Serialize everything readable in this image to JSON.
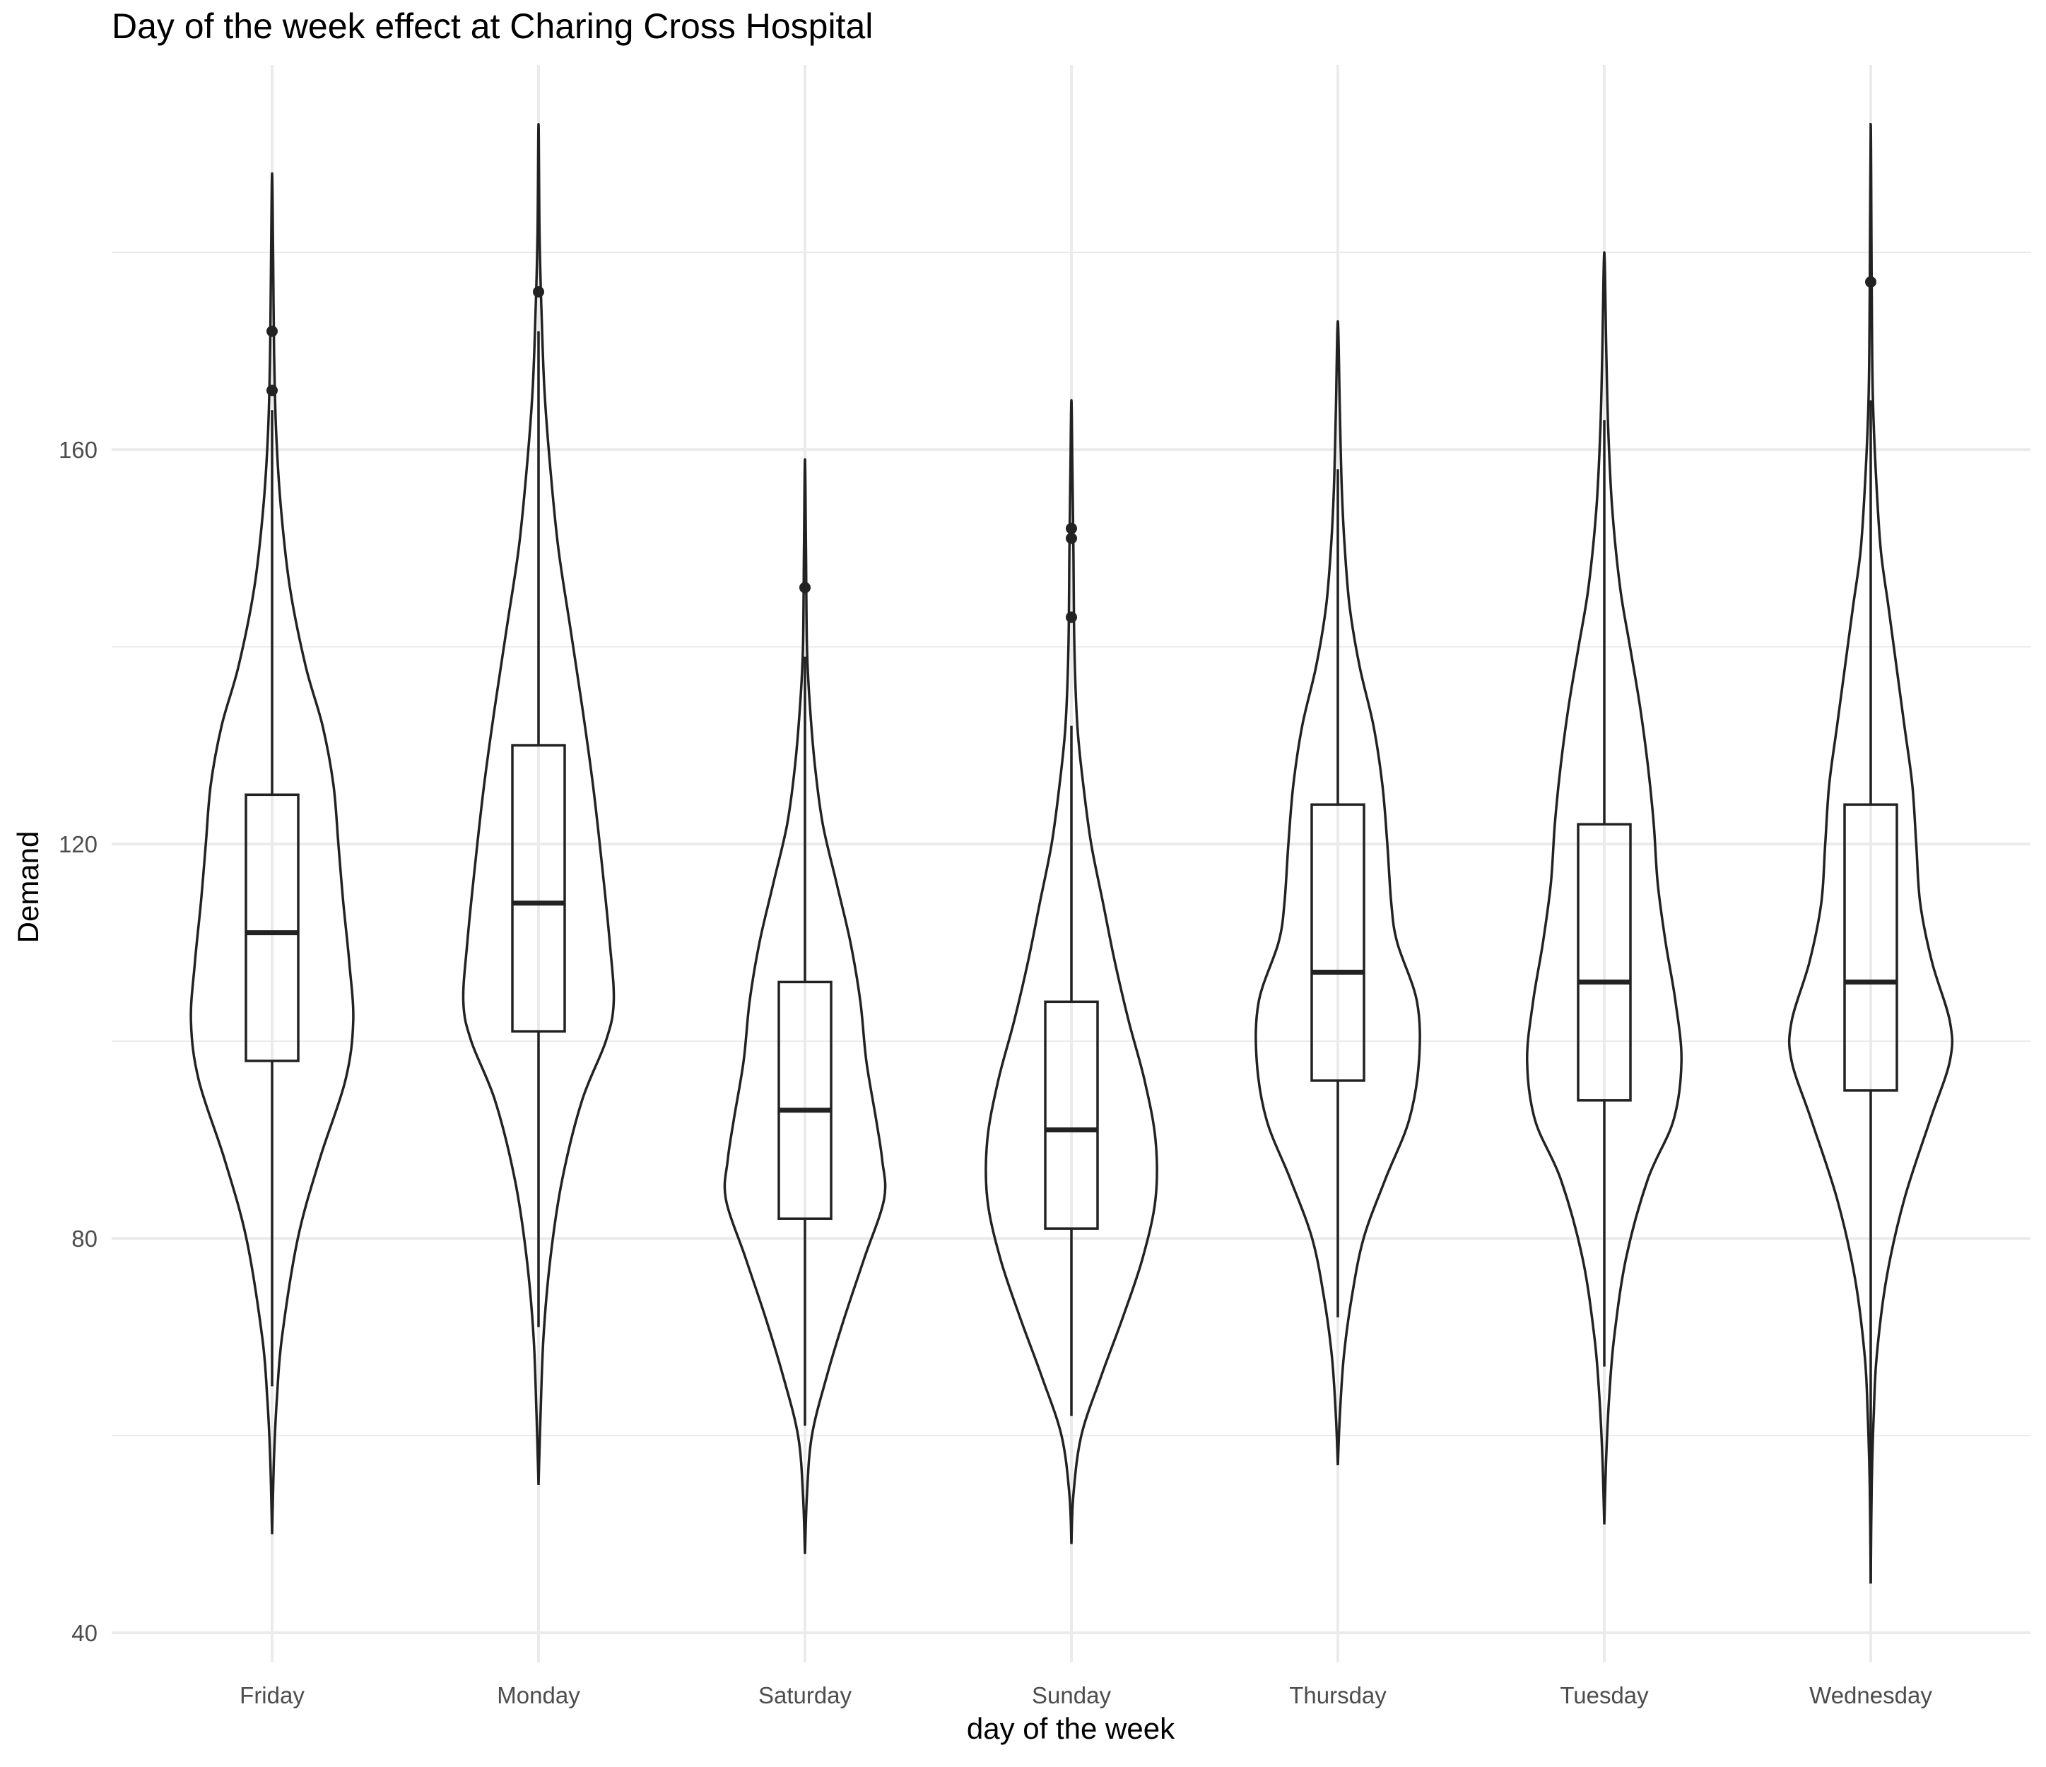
{
  "chart_data": {
    "type": "violin",
    "title": "Day of the week effect at Charing Cross Hospital",
    "xlabel": "day of the week",
    "ylabel": "Demand",
    "ylim": [
      37,
      199
    ],
    "yticks": [
      40,
      80,
      120,
      160
    ],
    "minor_yticks": [
      60,
      100,
      140,
      180
    ],
    "grid": true,
    "legend": "none",
    "colors": {
      "stroke": "#222222",
      "grid": "#ebebeb",
      "axis_text": "#4d4d4d"
    },
    "categories": [
      "Friday",
      "Monday",
      "Saturday",
      "Sunday",
      "Thursday",
      "Tuesday",
      "Wednesday"
    ],
    "series": [
      {
        "category": "Friday",
        "box": {
          "lower_whisker": 65,
          "q1": 98,
          "median": 111,
          "q3": 125,
          "upper_whisker": 164
        },
        "outliers": [
          166,
          172
        ],
        "violin_range": [
          50,
          188
        ],
        "violin_width_profile": [
          [
            50,
            0.0
          ],
          [
            58,
            0.02
          ],
          [
            64,
            0.05
          ],
          [
            70,
            0.1
          ],
          [
            80,
            0.26
          ],
          [
            88,
            0.48
          ],
          [
            96,
            0.74
          ],
          [
            102,
            0.82
          ],
          [
            108,
            0.78
          ],
          [
            114,
            0.72
          ],
          [
            120,
            0.67
          ],
          [
            126,
            0.62
          ],
          [
            132,
            0.51
          ],
          [
            138,
            0.34
          ],
          [
            146,
            0.18
          ],
          [
            154,
            0.09
          ],
          [
            162,
            0.04
          ],
          [
            170,
            0.02
          ],
          [
            180,
            0.01
          ],
          [
            188,
            0.0
          ]
        ]
      },
      {
        "category": "Monday",
        "box": {
          "lower_whisker": 71,
          "q1": 101,
          "median": 114,
          "q3": 130,
          "upper_whisker": 172
        },
        "outliers": [
          176
        ],
        "violin_range": [
          55,
          193
        ],
        "violin_width_profile": [
          [
            55,
            0.0
          ],
          [
            62,
            0.02
          ],
          [
            70,
            0.05
          ],
          [
            78,
            0.12
          ],
          [
            86,
            0.24
          ],
          [
            94,
            0.44
          ],
          [
            100,
            0.68
          ],
          [
            104,
            0.76
          ],
          [
            110,
            0.72
          ],
          [
            118,
            0.64
          ],
          [
            126,
            0.55
          ],
          [
            134,
            0.44
          ],
          [
            142,
            0.32
          ],
          [
            150,
            0.2
          ],
          [
            158,
            0.12
          ],
          [
            166,
            0.06
          ],
          [
            174,
            0.03
          ],
          [
            182,
            0.01
          ],
          [
            193,
            0.0
          ]
        ]
      },
      {
        "category": "Saturday",
        "box": {
          "lower_whisker": 61,
          "q1": 82,
          "median": 93,
          "q3": 106,
          "upper_whisker": 139
        },
        "outliers": [
          146
        ],
        "violin_range": [
          48,
          159
        ],
        "violin_width_profile": [
          [
            48,
            0.0
          ],
          [
            54,
            0.02
          ],
          [
            60,
            0.07
          ],
          [
            66,
            0.22
          ],
          [
            72,
            0.4
          ],
          [
            78,
            0.6
          ],
          [
            84,
            0.8
          ],
          [
            88,
            0.78
          ],
          [
            92,
            0.72
          ],
          [
            98,
            0.62
          ],
          [
            104,
            0.56
          ],
          [
            110,
            0.46
          ],
          [
            116,
            0.32
          ],
          [
            122,
            0.18
          ],
          [
            128,
            0.1
          ],
          [
            134,
            0.05
          ],
          [
            140,
            0.02
          ],
          [
            150,
            0.01
          ],
          [
            159,
            0.0
          ]
        ]
      },
      {
        "category": "Sunday",
        "box": {
          "lower_whisker": 62,
          "q1": 81,
          "median": 91,
          "q3": 104,
          "upper_whisker": 132
        },
        "outliers": [
          143,
          151,
          152
        ],
        "violin_range": [
          49,
          165
        ],
        "violin_width_profile": [
          [
            49,
            0.0
          ],
          [
            54,
            0.02
          ],
          [
            60,
            0.1
          ],
          [
            66,
            0.3
          ],
          [
            72,
            0.52
          ],
          [
            78,
            0.72
          ],
          [
            84,
            0.85
          ],
          [
            90,
            0.85
          ],
          [
            96,
            0.74
          ],
          [
            102,
            0.58
          ],
          [
            108,
            0.44
          ],
          [
            114,
            0.32
          ],
          [
            120,
            0.2
          ],
          [
            126,
            0.12
          ],
          [
            132,
            0.06
          ],
          [
            140,
            0.03
          ],
          [
            150,
            0.02
          ],
          [
            158,
            0.01
          ],
          [
            165,
            0.0
          ]
        ]
      },
      {
        "category": "Thursday",
        "box": {
          "lower_whisker": 72,
          "q1": 96,
          "median": 107,
          "q3": 124,
          "upper_whisker": 158
        },
        "outliers": [],
        "violin_range": [
          57,
          173
        ],
        "violin_width_profile": [
          [
            57,
            0.0
          ],
          [
            62,
            0.02
          ],
          [
            68,
            0.06
          ],
          [
            74,
            0.14
          ],
          [
            80,
            0.26
          ],
          [
            86,
            0.48
          ],
          [
            92,
            0.72
          ],
          [
            98,
            0.82
          ],
          [
            104,
            0.8
          ],
          [
            110,
            0.6
          ],
          [
            114,
            0.54
          ],
          [
            120,
            0.5
          ],
          [
            126,
            0.45
          ],
          [
            132,
            0.36
          ],
          [
            138,
            0.22
          ],
          [
            144,
            0.12
          ],
          [
            150,
            0.07
          ],
          [
            156,
            0.04
          ],
          [
            164,
            0.02
          ],
          [
            173,
            0.0
          ]
        ]
      },
      {
        "category": "Tuesday",
        "box": {
          "lower_whisker": 67,
          "q1": 94,
          "median": 106,
          "q3": 122,
          "upper_whisker": 163
        },
        "outliers": [],
        "violin_range": [
          51,
          180
        ],
        "violin_width_profile": [
          [
            51,
            0.0
          ],
          [
            58,
            0.02
          ],
          [
            64,
            0.05
          ],
          [
            70,
            0.1
          ],
          [
            78,
            0.22
          ],
          [
            86,
            0.44
          ],
          [
            92,
            0.7
          ],
          [
            98,
            0.78
          ],
          [
            104,
            0.72
          ],
          [
            110,
            0.62
          ],
          [
            116,
            0.54
          ],
          [
            122,
            0.5
          ],
          [
            128,
            0.44
          ],
          [
            134,
            0.36
          ],
          [
            140,
            0.26
          ],
          [
            146,
            0.16
          ],
          [
            154,
            0.08
          ],
          [
            162,
            0.04
          ],
          [
            170,
            0.02
          ],
          [
            180,
            0.0
          ]
        ]
      },
      {
        "category": "Wednesday",
        "box": {
          "lower_whisker": 45,
          "q1": 95,
          "median": 106,
          "q3": 124,
          "upper_whisker": 165
        },
        "outliers": [
          177
        ],
        "violin_range": [
          45,
          193
        ],
        "violin_width_profile": [
          [
            45,
            0.0
          ],
          [
            55,
            0.01
          ],
          [
            62,
            0.03
          ],
          [
            68,
            0.06
          ],
          [
            76,
            0.16
          ],
          [
            84,
            0.34
          ],
          [
            92,
            0.6
          ],
          [
            98,
            0.8
          ],
          [
            102,
            0.8
          ],
          [
            108,
            0.62
          ],
          [
            114,
            0.5
          ],
          [
            120,
            0.46
          ],
          [
            126,
            0.42
          ],
          [
            132,
            0.34
          ],
          [
            138,
            0.26
          ],
          [
            144,
            0.18
          ],
          [
            150,
            0.1
          ],
          [
            158,
            0.05
          ],
          [
            166,
            0.02
          ],
          [
            176,
            0.01
          ],
          [
            193,
            0.0
          ]
        ]
      }
    ]
  }
}
